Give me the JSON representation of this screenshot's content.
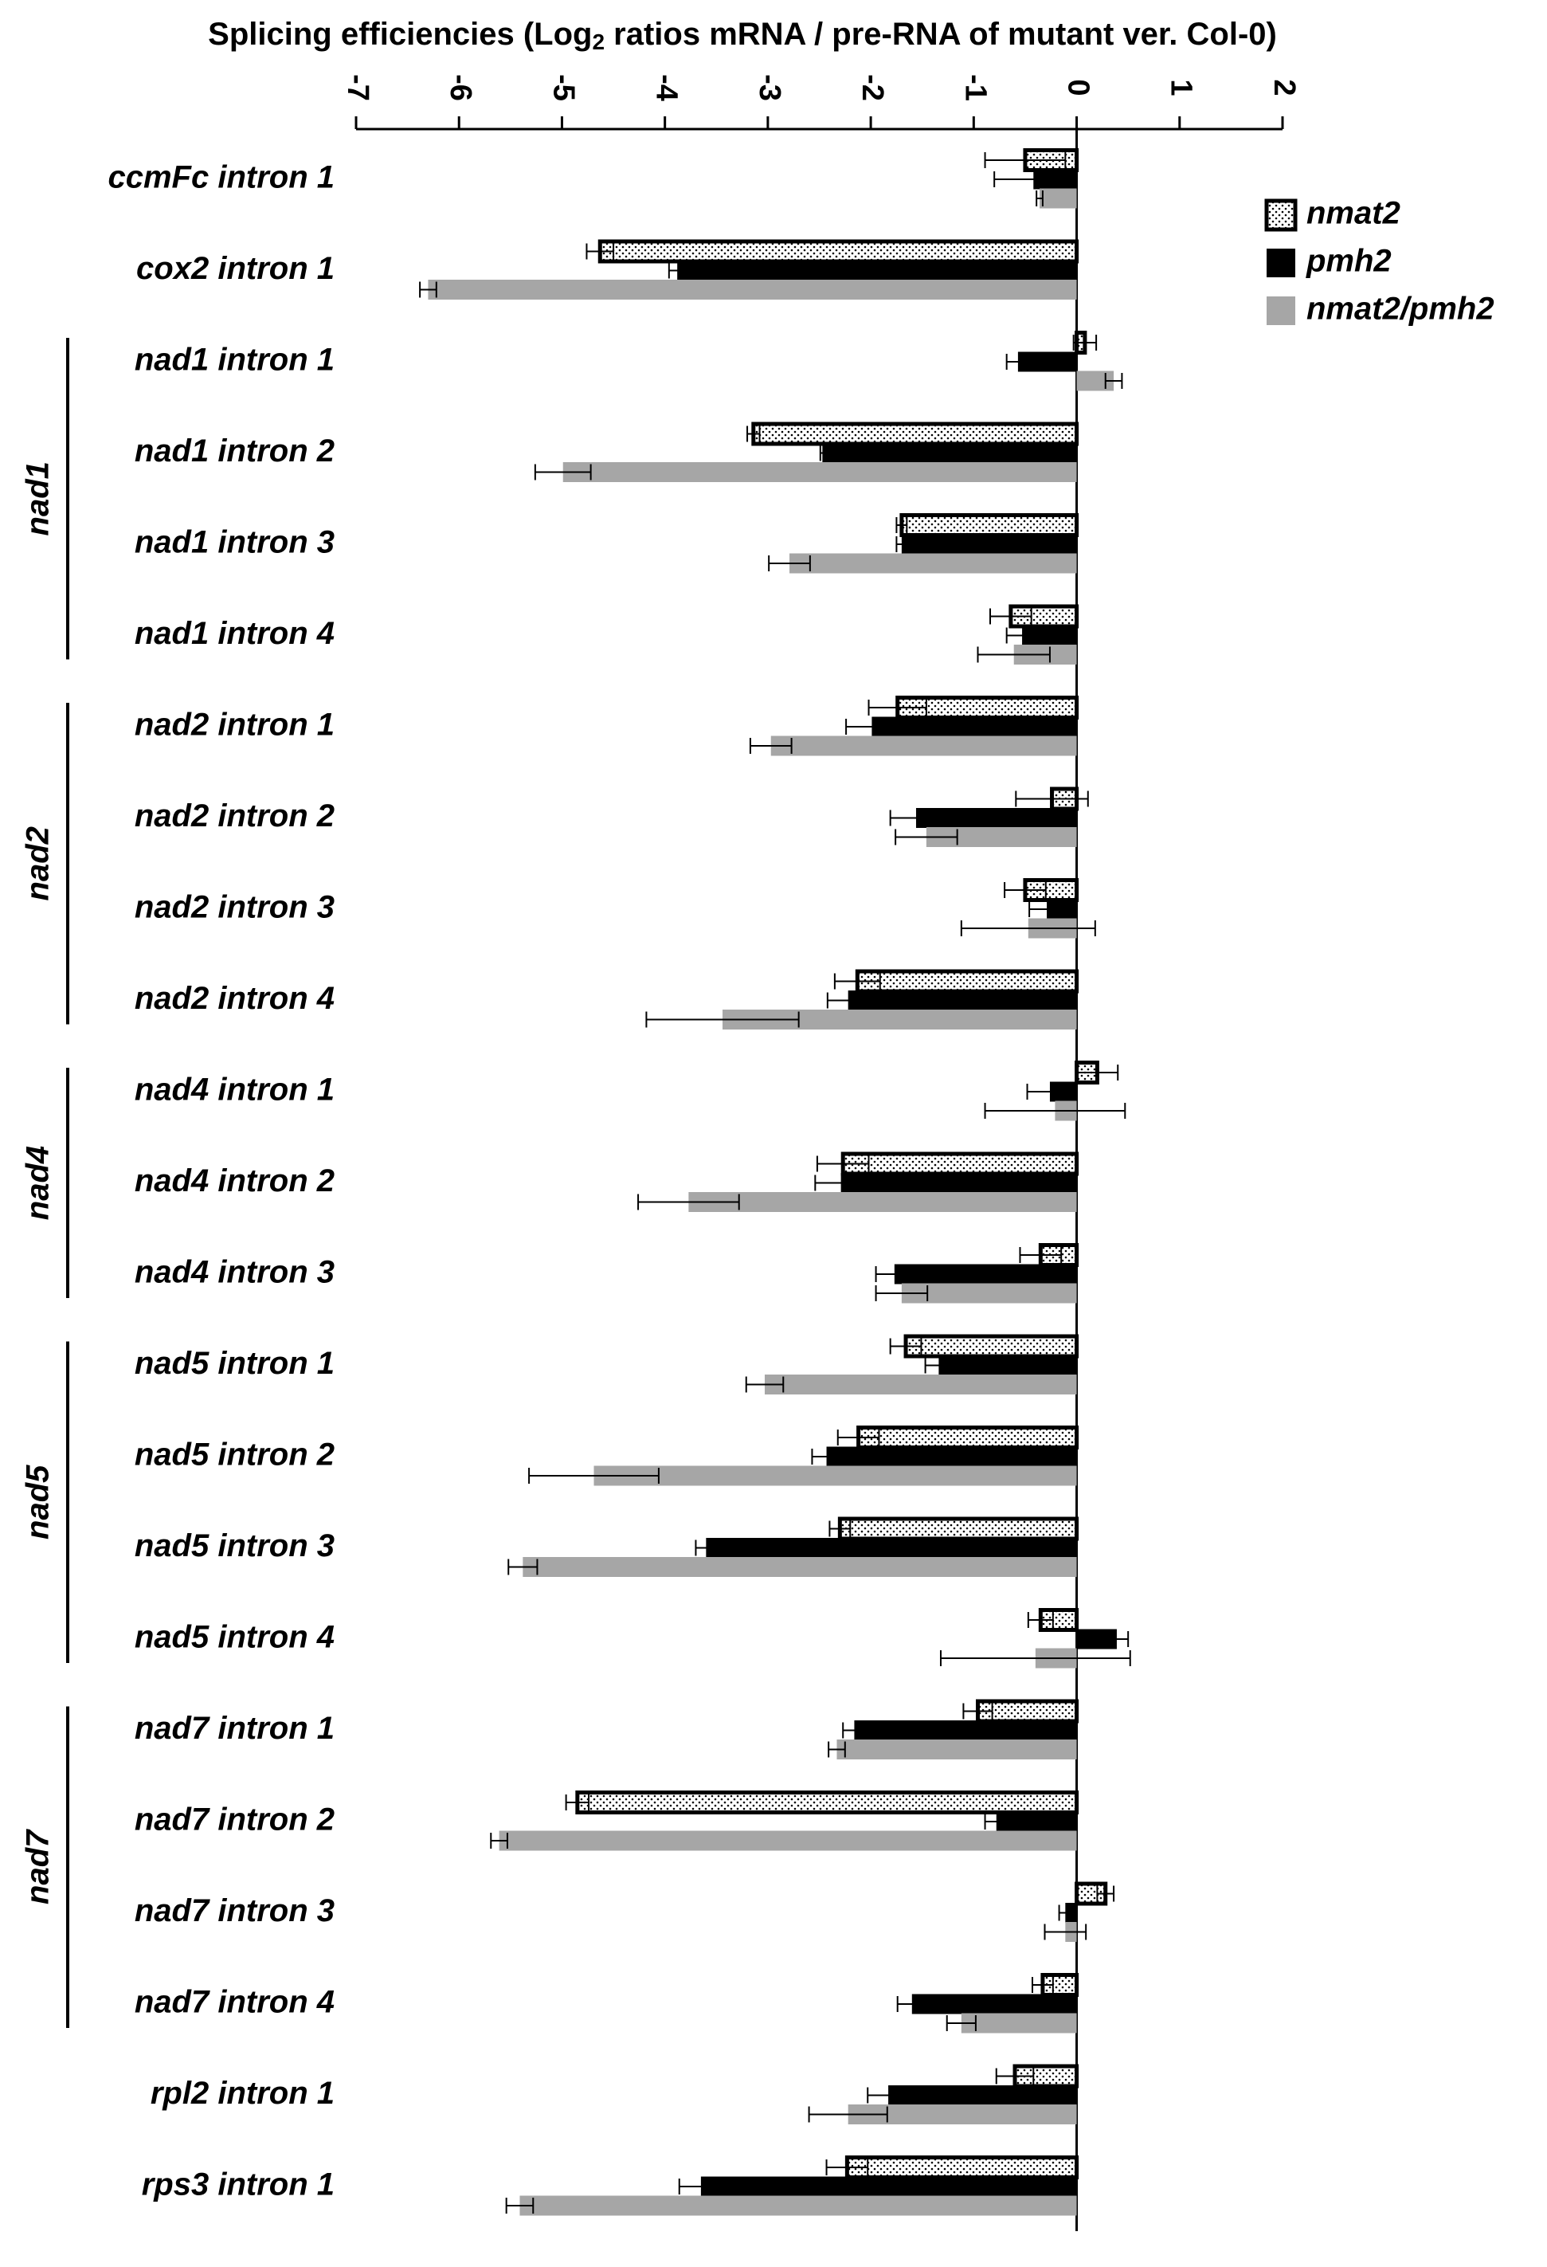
{
  "chart_data": {
    "type": "bar",
    "orientation": "horizontal",
    "title": [
      "Splicing efficiencies (Log",
      "2",
      " ratios mRNA / pre-RNA of mutant ver. Col-0)"
    ],
    "categories": [
      "ccmFc intron 1",
      "cox2 intron 1",
      "nad1 intron 1",
      "nad1 intron 2",
      "nad1 intron 3",
      "nad1 intron 4",
      "nad2 intron 1",
      "nad2 intron 2",
      "nad2 intron 3",
      "nad2 intron 4",
      "nad4 intron 1",
      "nad4 intron 2",
      "nad4 intron 3",
      "nad5 intron 1",
      "nad5 intron 2",
      "nad5 intron 3",
      "nad5 intron 4",
      "nad7 intron 1",
      "nad7 intron 2",
      "nad7 intron 3",
      "nad7 intron 4",
      "rpl2 intron 1",
      "rps3 intron 1"
    ],
    "groups": [
      {
        "name": "nad1",
        "categories": [
          "nad1 intron 1",
          "nad1 intron 2",
          "nad1 intron 3",
          "nad1 intron 4"
        ]
      },
      {
        "name": "nad2",
        "categories": [
          "nad2 intron 1",
          "nad2 intron 2",
          "nad2 intron 3",
          "nad2 intron 4"
        ]
      },
      {
        "name": "nad4",
        "categories": [
          "nad4 intron 1",
          "nad4 intron 2",
          "nad4 intron 3"
        ]
      },
      {
        "name": "nad5",
        "categories": [
          "nad5 intron 1",
          "nad5 intron 2",
          "nad5 intron 3",
          "nad5 intron 4"
        ]
      },
      {
        "name": "nad7",
        "categories": [
          "nad7 intron 1",
          "nad7 intron 2",
          "nad7 intron 3",
          "nad7 intron 4"
        ]
      }
    ],
    "series": [
      {
        "name": "nmat2",
        "color": "#ffffff",
        "pattern": "dots",
        "values": [
          -0.5,
          -4.63,
          0.08,
          -3.14,
          -1.7,
          -0.64,
          -1.74,
          -0.24,
          -0.5,
          -2.13,
          0.2,
          -2.27,
          -0.35,
          -1.66,
          -2.12,
          -2.3,
          -0.35,
          -0.96,
          -4.85,
          0.28,
          -0.33,
          -0.6,
          -2.23
        ],
        "errors": [
          0.39,
          0.13,
          0.11,
          0.06,
          0.05,
          0.2,
          0.28,
          0.35,
          0.2,
          0.22,
          0.2,
          0.25,
          0.2,
          0.15,
          0.2,
          0.1,
          0.12,
          0.14,
          0.11,
          0.08,
          0.1,
          0.18,
          0.2
        ]
      },
      {
        "name": "pmh2",
        "color": "#000000",
        "values": [
          -0.42,
          -3.88,
          -0.57,
          -2.47,
          -1.7,
          -0.53,
          -1.99,
          -1.56,
          -0.29,
          -2.22,
          -0.26,
          -2.29,
          -1.77,
          -1.34,
          -2.43,
          -3.6,
          0.39,
          -2.16,
          -0.78,
          -0.11,
          -1.6,
          -1.83,
          -3.65
        ],
        "errors": [
          0.38,
          0.08,
          0.11,
          0.02,
          0.05,
          0.15,
          0.25,
          0.25,
          0.17,
          0.2,
          0.22,
          0.25,
          0.18,
          0.13,
          0.14,
          0.1,
          0.11,
          0.11,
          0.11,
          0.06,
          0.14,
          0.2,
          0.21
        ]
      },
      {
        "name": "nmat2/pmh2",
        "color": "#a6a6a6",
        "values": [
          -0.36,
          -6.3,
          0.36,
          -4.99,
          -2.79,
          -0.61,
          -2.97,
          -1.46,
          -0.47,
          -3.44,
          -0.21,
          -3.77,
          -1.7,
          -3.03,
          -4.69,
          -5.38,
          -0.4,
          -2.33,
          -5.61,
          -0.11,
          -1.12,
          -2.22,
          -5.41
        ],
        "errors": [
          0.03,
          0.08,
          0.08,
          0.27,
          0.2,
          0.35,
          0.2,
          0.3,
          0.65,
          0.74,
          0.68,
          0.49,
          0.25,
          0.18,
          0.63,
          0.14,
          0.92,
          0.08,
          0.08,
          0.2,
          0.14,
          0.38,
          0.13
        ]
      }
    ],
    "xlim": [
      -7,
      2
    ],
    "xticks": [
      -7,
      -6,
      -5,
      -4,
      -3,
      -2,
      -1,
      0,
      1,
      2
    ],
    "legend": "upper right"
  }
}
